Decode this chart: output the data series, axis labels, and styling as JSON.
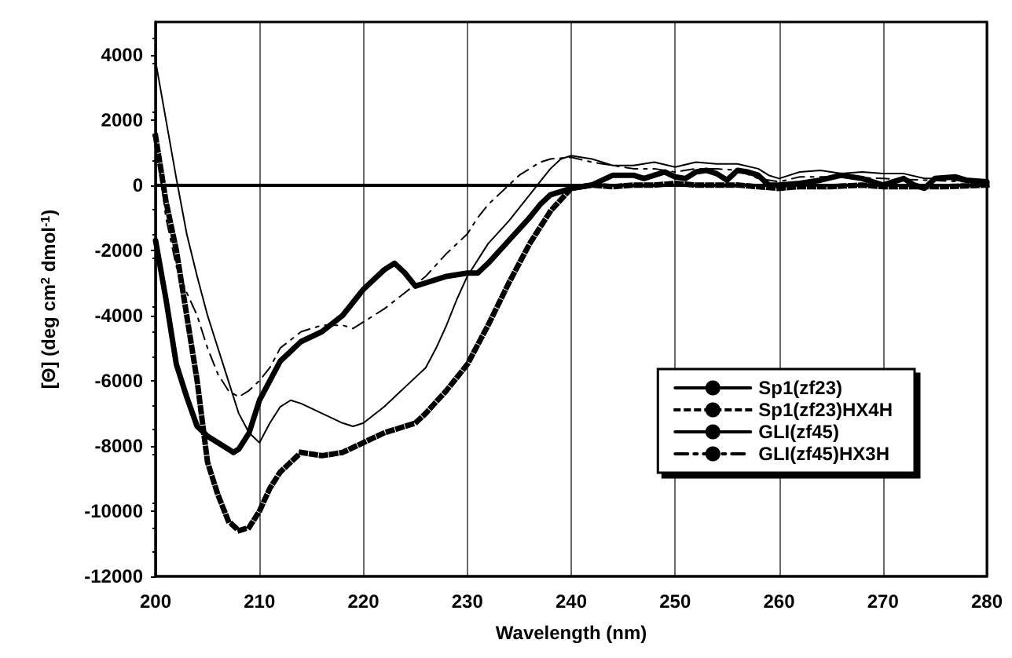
{
  "chart_data": {
    "type": "line",
    "xlabel": "Wavelength (nm)",
    "ylabel": "[Θ] (deg cm$^{2}$ dmol$^{-1}$)",
    "xlim": [
      200,
      280
    ],
    "xticks": [
      200,
      210,
      220,
      230,
      240,
      250,
      260,
      270,
      280
    ],
    "ylim": [
      -12000,
      5000
    ],
    "yticks": [
      -12000,
      -10000,
      -8000,
      -6000,
      -4000,
      -2000,
      0,
      2000,
      4000
    ],
    "grid": "x",
    "legend": "bottom right",
    "marker": "none",
    "ref_lines": [
      {
        "axis": "y",
        "value": 0,
        "color": "#000000",
        "line_style": "solid"
      }
    ],
    "series": [
      {
        "name": "Sp1(zf23)",
        "color": "#000000",
        "line_style": "solid",
        "x": [
          200,
          201,
          202,
          203,
          204,
          205,
          206,
          207,
          207.5,
          208,
          209,
          210,
          211,
          212,
          214,
          216,
          218,
          220,
          222,
          223,
          224,
          225,
          226,
          228,
          230,
          231,
          232,
          234,
          236,
          237,
          238,
          240,
          241,
          242,
          243,
          244,
          246,
          247,
          248,
          249,
          250,
          251,
          252,
          253,
          254,
          255,
          256,
          257,
          258,
          259,
          260,
          262,
          264,
          266,
          268,
          270,
          272,
          273,
          274,
          275,
          277,
          278,
          280
        ],
        "values": [
          -1700,
          -3500,
          -5500,
          -6500,
          -7400,
          -7700,
          -7900,
          -8100,
          -8200,
          -8100,
          -7600,
          -6600,
          -6000,
          -5400,
          -4800,
          -4500,
          -4000,
          -3200,
          -2600,
          -2400,
          -2700,
          -3100,
          -3000,
          -2800,
          -2700,
          -2700,
          -2400,
          -1700,
          -1000,
          -600,
          -300,
          -100,
          -50,
          0,
          150,
          300,
          300,
          200,
          300,
          400,
          250,
          200,
          400,
          450,
          350,
          150,
          450,
          400,
          300,
          0,
          0,
          50,
          150,
          300,
          200,
          0,
          200,
          0,
          -100,
          200,
          250,
          150,
          100
        ]
      },
      {
        "name": "Sp1(zf23)HX4H",
        "color": "#000000",
        "line_style": "dotted",
        "x": [
          200,
          201,
          202,
          203,
          204,
          205,
          206,
          207,
          208,
          209,
          210,
          211,
          212,
          213,
          214,
          216,
          218,
          220,
          222,
          224,
          225,
          226,
          228,
          230,
          232,
          234,
          236,
          238,
          240,
          242,
          244,
          246,
          248,
          250,
          252,
          254,
          256,
          258,
          260,
          262,
          265,
          268,
          270,
          273,
          276,
          280
        ],
        "values": [
          1500,
          -500,
          -2000,
          -4000,
          -6000,
          -8500,
          -9500,
          -10300,
          -10600,
          -10500,
          -10000,
          -9300,
          -8800,
          -8500,
          -8200,
          -8300,
          -8200,
          -7900,
          -7600,
          -7400,
          -7300,
          -7000,
          -6300,
          -5500,
          -4300,
          -3000,
          -1800,
          -800,
          -100,
          0,
          -50,
          0,
          0,
          50,
          0,
          0,
          0,
          -50,
          -100,
          -50,
          -50,
          0,
          -50,
          -50,
          -50,
          0
        ]
      },
      {
        "name": "GLI(zf45)",
        "color": "#000000",
        "line_style": "solid",
        "x": [
          200,
          201,
          202,
          203,
          204,
          205,
          206,
          207,
          208,
          209,
          210,
          211,
          212,
          213,
          214,
          216,
          218,
          219,
          220,
          222,
          224,
          226,
          227,
          228,
          229,
          230,
          232,
          234,
          236,
          237,
          238,
          239,
          240,
          242,
          244,
          246,
          248,
          250,
          252,
          254,
          256,
          258,
          259,
          260,
          262,
          264,
          266,
          268,
          270,
          272,
          274,
          276,
          278,
          280
        ],
        "values": [
          3800,
          2000,
          200,
          -1500,
          -2800,
          -4000,
          -5000,
          -6000,
          -7000,
          -7600,
          -7900,
          -7300,
          -6800,
          -6600,
          -6700,
          -7000,
          -7300,
          -7400,
          -7300,
          -6800,
          -6200,
          -5600,
          -5000,
          -4300,
          -3500,
          -2800,
          -1800,
          -1100,
          -300,
          100,
          500,
          800,
          900,
          800,
          600,
          600,
          700,
          550,
          700,
          650,
          650,
          500,
          300,
          200,
          400,
          450,
          350,
          400,
          350,
          350,
          200,
          200,
          100,
          150
        ]
      },
      {
        "name": "GLI(zf45)HX3H",
        "color": "#000000",
        "line_style": "dashdot",
        "x": [
          200,
          201,
          202,
          203,
          204,
          205,
          206,
          207,
          208,
          209,
          210,
          211,
          212,
          214,
          216,
          218,
          219,
          220,
          222,
          224,
          226,
          228,
          230,
          231,
          232,
          233,
          234,
          235,
          236,
          237,
          238,
          240,
          242,
          244,
          246,
          248,
          250,
          252,
          254,
          256,
          258,
          260,
          262,
          266,
          270,
          274,
          278,
          280
        ],
        "values": [
          1500,
          -1000,
          -2500,
          -3300,
          -4000,
          -5000,
          -5800,
          -6300,
          -6500,
          -6300,
          -6000,
          -5600,
          -5000,
          -4500,
          -4300,
          -4300,
          -4400,
          -4200,
          -3800,
          -3300,
          -2800,
          -2100,
          -1500,
          -1000,
          -600,
          -300,
          0,
          300,
          500,
          700,
          800,
          850,
          700,
          600,
          500,
          500,
          400,
          500,
          500,
          450,
          200,
          100,
          250,
          250,
          200,
          150,
          100,
          100
        ]
      }
    ]
  }
}
